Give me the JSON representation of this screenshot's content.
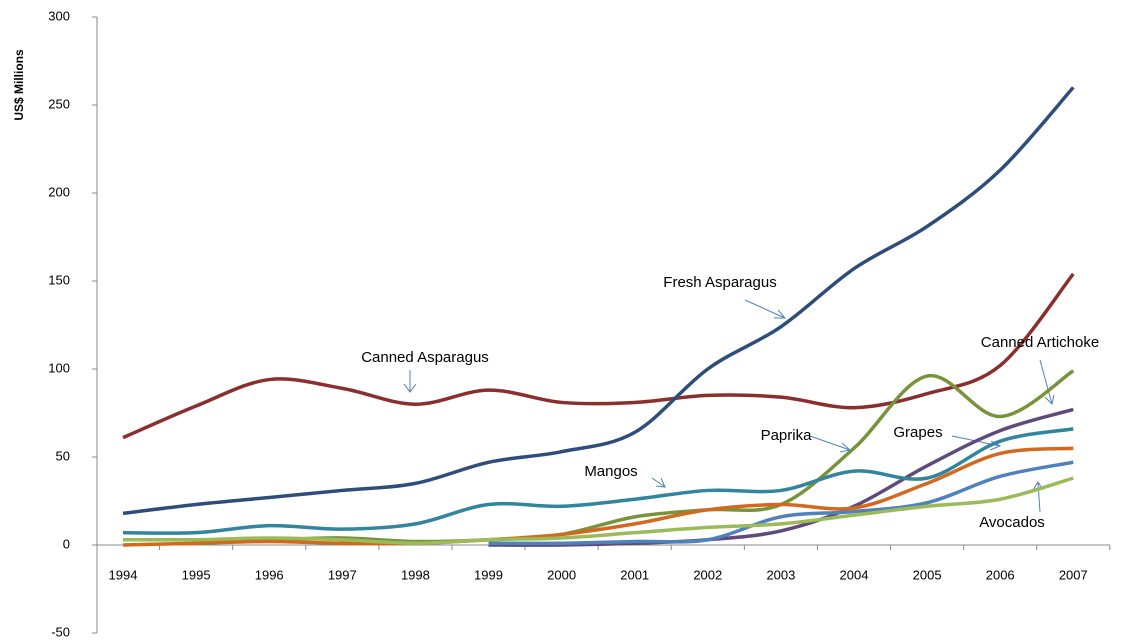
{
  "chart_data": {
    "type": "line",
    "y_label": "US$ Millions",
    "categories": [
      "1994",
      "1995",
      "1996",
      "1997",
      "1998",
      "1999",
      "2000",
      "2001",
      "2002",
      "2003",
      "2004",
      "2005",
      "2006",
      "2007"
    ],
    "ylim": [
      -50,
      300
    ],
    "yticks": [
      -50,
      0,
      50,
      100,
      150,
      200,
      250,
      300
    ],
    "series": [
      {
        "name": "Canned Asparagus",
        "color": "#8b2e2e",
        "values": [
          61,
          79,
          94,
          89,
          80,
          88,
          81,
          81,
          85,
          84,
          78,
          86,
          102,
          154
        ]
      },
      {
        "name": "Fresh Asparagus",
        "color": "#2e4d7b",
        "values": [
          18,
          23,
          27,
          31,
          35,
          47,
          53,
          64,
          100,
          124,
          157,
          181,
          213,
          260
        ]
      },
      {
        "name": "Paprika",
        "color": "#77933c",
        "values": [
          3,
          3,
          3,
          4,
          2,
          3,
          6,
          16,
          20,
          23,
          55,
          96,
          73,
          99
        ]
      },
      {
        "name": "Canned Artichoke",
        "color": "#5f4a7b",
        "values": [
          null,
          null,
          null,
          null,
          null,
          0,
          0,
          1,
          3,
          8,
          22,
          45,
          65,
          77
        ]
      },
      {
        "name": "Mangos",
        "color": "#31859c",
        "values": [
          7,
          7,
          11,
          9,
          12,
          23,
          22,
          26,
          31,
          31,
          42,
          38,
          59,
          66
        ]
      },
      {
        "name": "Grapes",
        "color": "#d2691e",
        "values": [
          0,
          1,
          2,
          1,
          1,
          3,
          6,
          12,
          20,
          23,
          21,
          35,
          52,
          55
        ]
      },
      {
        "name": "Avocados",
        "color": "#4f81bd",
        "values": [
          null,
          null,
          null,
          null,
          null,
          1,
          1,
          2,
          3,
          16,
          19,
          24,
          39,
          47
        ]
      },
      {
        "color": "#9bbb59",
        "values": [
          3,
          3,
          4,
          3,
          1,
          3,
          4,
          7,
          10,
          12,
          17,
          22,
          26,
          38
        ]
      }
    ]
  }
}
